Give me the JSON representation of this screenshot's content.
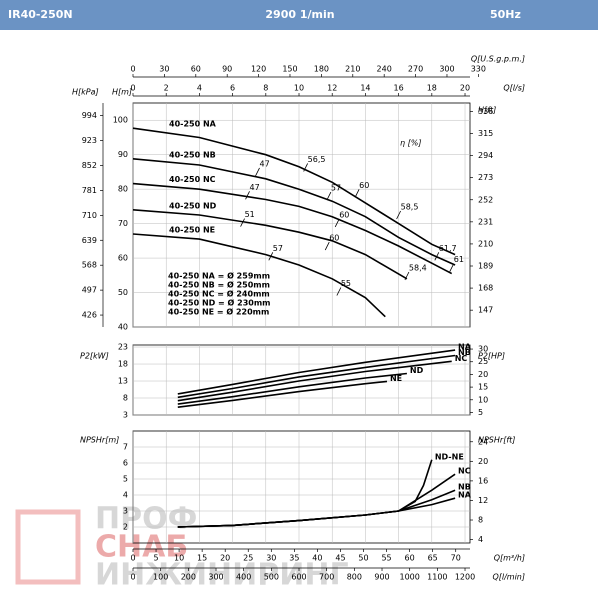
{
  "header": {
    "model": "IR40-250N",
    "speed": "2900 1/min",
    "freq": "50Hz"
  },
  "x_axes": [
    {
      "label": "Q[U.S.g.p.m.]",
      "lim": [
        0,
        322
      ],
      "ticks": [
        0,
        30,
        60,
        90,
        120,
        150,
        180,
        210,
        240,
        270,
        300,
        330
      ]
    },
    {
      "label": "Q[l/s]",
      "lim": [
        0,
        20.3
      ],
      "ticks": [
        0,
        2,
        4,
        6,
        8,
        10,
        12,
        14,
        16,
        18,
        20
      ]
    },
    {
      "label": "Q[m³/h]",
      "lim": [
        0,
        73.1
      ],
      "ticks": [
        0,
        5,
        10,
        15,
        20,
        25,
        30,
        35,
        40,
        45,
        50,
        55,
        60,
        65,
        70
      ]
    },
    {
      "label": "Q[l/min]",
      "lim": [
        0,
        1218
      ],
      "ticks": [
        0,
        100,
        200,
        300,
        400,
        500,
        600,
        700,
        800,
        900,
        1000,
        1100,
        1200
      ]
    }
  ],
  "chart_data": [
    {
      "type": "line",
      "xlim": [
        0,
        20.3
      ],
      "ylabel": "H[m]",
      "ylim": [
        40,
        105
      ],
      "yticks": [
        40,
        50,
        60,
        70,
        80,
        90,
        100
      ],
      "grid": true,
      "y_outer": {
        "label": "H[kPa]",
        "lim": [
          392,
          1030
        ],
        "ticks": [
          426,
          497,
          568,
          639,
          710,
          781,
          852,
          923,
          994
        ]
      },
      "y2label": "H[ft]",
      "y2lim": [
        131,
        344
      ],
      "y2ticks": [
        147,
        168,
        189,
        210,
        231,
        252,
        273,
        294,
        315,
        336
      ],
      "series": [
        {
          "name": "40-250 NA",
          "color": "#000000",
          "x": [
            0,
            4,
            8,
            10,
            12,
            14,
            16,
            18,
            19.4
          ],
          "values": [
            97.7,
            95,
            90,
            86.5,
            82,
            76,
            70,
            64,
            61
          ]
        },
        {
          "name": "40-250 NB",
          "color": "#000000",
          "x": [
            0,
            4,
            8,
            10,
            12,
            14,
            16,
            18,
            19.4
          ],
          "values": [
            88.8,
            87,
            83,
            80,
            76.5,
            72,
            66,
            61,
            58
          ]
        },
        {
          "name": "40-250 NC",
          "color": "#000000",
          "x": [
            0,
            4,
            8,
            10,
            12,
            14,
            16,
            18,
            19.2
          ],
          "values": [
            81.6,
            80,
            77,
            75,
            72,
            68,
            63.5,
            58.5,
            55.5
          ]
        },
        {
          "name": "40-250 ND",
          "color": "#000000",
          "x": [
            0,
            4,
            8,
            10,
            12,
            14,
            16.5
          ],
          "values": [
            74,
            72.5,
            69.5,
            67.5,
            65,
            61,
            54
          ]
        },
        {
          "name": "40-250 NE",
          "color": "#000000",
          "x": [
            0,
            4,
            8,
            10,
            12,
            14,
            15.2
          ],
          "values": [
            67,
            65.5,
            61,
            58,
            54,
            48.5,
            43
          ]
        }
      ],
      "eta_label": "η [%]",
      "annotations": [
        {
          "text": "47",
          "x": 7.5,
          "y": 85
        },
        {
          "text": "56,5",
          "x": 10.4,
          "y": 86.3
        },
        {
          "text": "47",
          "x": 6.9,
          "y": 78.2
        },
        {
          "text": "57",
          "x": 11.8,
          "y": 78
        },
        {
          "text": "60",
          "x": 13.5,
          "y": 78.8
        },
        {
          "text": "58,5",
          "x": 16,
          "y": 72.5
        },
        {
          "text": "51",
          "x": 6.6,
          "y": 70.3
        },
        {
          "text": "60",
          "x": 12.3,
          "y": 70.2
        },
        {
          "text": "61,7",
          "x": 18.3,
          "y": 60.5
        },
        {
          "text": "61",
          "x": 19.2,
          "y": 57.2
        },
        {
          "text": "60",
          "x": 11.7,
          "y": 63.5
        },
        {
          "text": "58,4",
          "x": 16.5,
          "y": 54.8
        },
        {
          "text": "57",
          "x": 8.3,
          "y": 60.5
        },
        {
          "text": "55",
          "x": 12.4,
          "y": 50.3
        }
      ],
      "notes": [
        "40-250 NA = Ø 259mm",
        "40-250 NB = Ø 250mm",
        "40-250 NC = Ø 240mm",
        "40-250 ND = Ø 230mm",
        "40-250 NE = Ø 220mm"
      ]
    },
    {
      "type": "line",
      "xlim": [
        0,
        20.3
      ],
      "ylabel": "P2[kW]",
      "ylim": [
        3,
        23.6
      ],
      "yticks": [
        3,
        8,
        13,
        18,
        23
      ],
      "grid": true,
      "y2label": "P2[HP]",
      "y2lim": [
        4,
        31.6
      ],
      "y2ticks": [
        5,
        10,
        15,
        20,
        25,
        30
      ],
      "series": [
        {
          "name": "NA",
          "color": "#000000",
          "x": [
            2.7,
            6,
            10,
            14,
            19.4
          ],
          "values": [
            9.2,
            12,
            15.5,
            18.5,
            22.1
          ]
        },
        {
          "name": "NB",
          "color": "#000000",
          "x": [
            2.7,
            6,
            10,
            14,
            19.4
          ],
          "values": [
            8.2,
            10.8,
            14.2,
            17,
            20.5
          ]
        },
        {
          "name": "NC",
          "color": "#000000",
          "x": [
            2.7,
            6,
            10,
            14,
            19.2
          ],
          "values": [
            7.2,
            9.7,
            13,
            15.8,
            18.8
          ]
        },
        {
          "name": "ND",
          "color": "#000000",
          "x": [
            2.7,
            6,
            10,
            14,
            16.5
          ],
          "values": [
            6.2,
            8.4,
            11.3,
            13.9,
            15.2
          ]
        },
        {
          "name": "NE",
          "color": "#000000",
          "x": [
            2.7,
            6,
            10,
            14,
            15.3
          ],
          "values": [
            5.3,
            7.3,
            9.9,
            12.2,
            12.9
          ]
        }
      ]
    },
    {
      "type": "line",
      "xlim": [
        0,
        20.3
      ],
      "ylabel": "NPSHr[m]",
      "ylim": [
        1,
        8
      ],
      "yticks": [
        2,
        3,
        4,
        5,
        6,
        7
      ],
      "grid": true,
      "y2label": "NPSHr[ft]",
      "y2lim": [
        3.3,
        26.2
      ],
      "y2ticks": [
        4,
        8,
        12,
        16,
        20,
        24
      ],
      "series": [
        {
          "name": "ND-NE",
          "color": "#000000",
          "x": [
            2.7,
            6,
            10,
            14,
            16,
            17,
            17.5,
            18
          ],
          "values": [
            2,
            2.1,
            2.4,
            2.75,
            3,
            3.6,
            4.6,
            6.2
          ]
        },
        {
          "name": "NC",
          "color": "#000000",
          "x": [
            2.7,
            6,
            10,
            14,
            16,
            18,
            19.4
          ],
          "values": [
            2,
            2.1,
            2.4,
            2.75,
            3,
            4.3,
            5.3
          ]
        },
        {
          "name": "NB",
          "color": "#000000",
          "x": [
            2.7,
            6,
            10,
            14,
            16,
            18,
            19.4
          ],
          "values": [
            2,
            2.1,
            2.4,
            2.75,
            3,
            3.7,
            4.3
          ]
        },
        {
          "name": "NA",
          "color": "#000000",
          "x": [
            2.7,
            6,
            10,
            14,
            16,
            18,
            19.4
          ],
          "values": [
            2,
            2.1,
            2.4,
            2.75,
            3,
            3.4,
            3.8
          ]
        }
      ]
    }
  ],
  "watermark": [
    "ПРОФ",
    "СНАБ",
    "ИНЖИНИРИНГ"
  ]
}
